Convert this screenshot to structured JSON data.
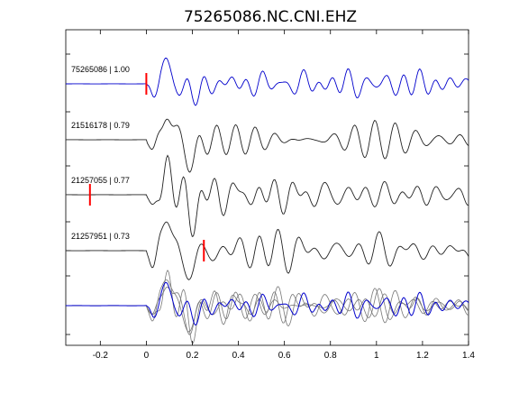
{
  "chart_data": {
    "type": "line",
    "title": "75265086.NC.CNI.EHZ",
    "xlabel": "",
    "ylabel": "",
    "xlim": [
      -0.35,
      1.4
    ],
    "xticks": [
      -0.2,
      0,
      0.2,
      0.4,
      0.6,
      0.8,
      1,
      1.2,
      1.4
    ],
    "xtick_labels": [
      "-0.2",
      "0",
      "0.2",
      "0.4",
      "0.6",
      "0.8",
      "1",
      "1.2",
      "1.4"
    ],
    "traces": [
      {
        "label": "75265086 | 1.00",
        "color": "#0000cc",
        "pick": 0.0,
        "onset": 0.0,
        "seed": 1
      },
      {
        "label": "21516178 | 0.79",
        "color": "#222222",
        "pick": null,
        "onset": 0.0,
        "seed": 2
      },
      {
        "label": "21257055 | 0.77",
        "color": "#222222",
        "pick": -0.245,
        "onset": 0.0,
        "seed": 3
      },
      {
        "label": "21257951 | 0.73",
        "color": "#222222",
        "pick": 0.25,
        "onset": 0.0,
        "seed": 4
      }
    ],
    "stack": {
      "label": "",
      "colors": [
        "#0000cc",
        "#777777"
      ]
    },
    "pick_color": "#ff0000"
  }
}
